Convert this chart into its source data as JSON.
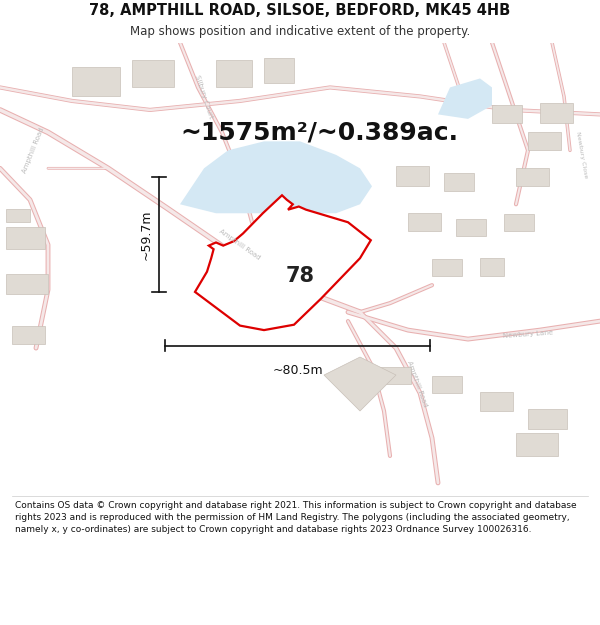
{
  "title": "78, AMPTHILL ROAD, SILSOE, BEDFORD, MK45 4HB",
  "subtitle": "Map shows position and indicative extent of the property.",
  "area_text": "~1575m²/~0.389ac.",
  "width_text": "~80.5m",
  "height_text": "~59.7m",
  "property_number": "78",
  "footer": "Contains OS data © Crown copyright and database right 2021. This information is subject to Crown copyright and database rights 2023 and is reproduced with the permission of HM Land Registry. The polygons (including the associated geometry, namely x, y co-ordinates) are subject to Crown copyright and database rights 2023 Ordnance Survey 100026316.",
  "map_bg": "#fafafa",
  "road_fill": "#f5e8e8",
  "road_edge": "#e8b0b0",
  "road_edge_main": "#e8b0b0",
  "building_fill": "#e0dbd4",
  "building_edge": "#c8c0b8",
  "water_fill": "#d4e8f4",
  "property_fill": "#ffffff",
  "property_edge": "#dd0000",
  "dim_color": "#111111",
  "header_bg": "#ffffff",
  "footer_bg": "#ffffff"
}
